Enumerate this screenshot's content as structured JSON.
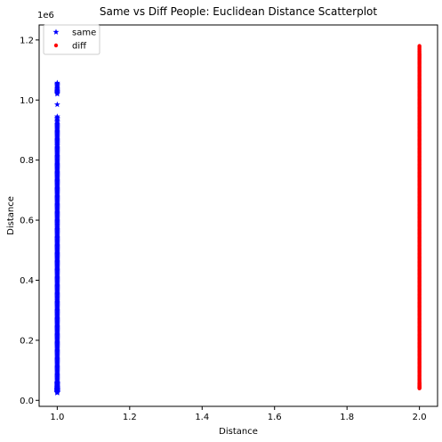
{
  "chart_data": {
    "type": "scatter",
    "title": "Same vs Diff People: Euclidean Distance Scatterplot",
    "xlabel": "Distance",
    "ylabel": "Distance",
    "y_offset_label": "1e6",
    "xlim": [
      0.95,
      2.05
    ],
    "ylim": [
      -0.02,
      1.25
    ],
    "x_ticks": [
      1.0,
      1.2,
      1.4,
      1.6,
      1.8,
      2.0
    ],
    "x_tick_labels": [
      "1.0",
      "1.2",
      "1.4",
      "1.6",
      "1.8",
      "2.0"
    ],
    "y_ticks": [
      0.0,
      0.2,
      0.4,
      0.6,
      0.8,
      1.0,
      1.2
    ],
    "y_tick_labels": [
      "0.0",
      "0.2",
      "0.4",
      "0.6",
      "0.8",
      "1.0",
      "1.2"
    ],
    "grid": false,
    "legend_position": "top-left",
    "series": [
      {
        "name": "same",
        "marker": "star",
        "color": "#0000ff",
        "x": 1.0,
        "y": [
          0.025,
          0.03,
          0.035,
          0.04,
          0.05,
          0.06,
          0.08,
          0.1,
          0.12,
          0.14,
          0.16,
          0.18,
          0.2,
          0.22,
          0.24,
          0.26,
          0.28,
          0.3,
          0.32,
          0.34,
          0.36,
          0.38,
          0.4,
          0.42,
          0.44,
          0.46,
          0.48,
          0.5,
          0.52,
          0.54,
          0.56,
          0.58,
          0.6,
          0.62,
          0.64,
          0.66,
          0.68,
          0.7,
          0.72,
          0.74,
          0.76,
          0.78,
          0.8,
          0.82,
          0.84,
          0.86,
          0.88,
          0.9,
          0.92,
          0.945,
          0.985,
          1.02,
          1.035,
          1.057
        ]
      },
      {
        "name": "diff",
        "marker": "circle",
        "color": "#ff0000",
        "x": 2.0,
        "y": [
          0.04,
          0.045,
          0.05,
          0.06,
          0.08,
          0.1,
          0.12,
          0.14,
          0.16,
          0.18,
          0.2,
          0.22,
          0.24,
          0.26,
          0.28,
          0.3,
          0.32,
          0.34,
          0.36,
          0.38,
          0.4,
          0.42,
          0.44,
          0.46,
          0.48,
          0.5,
          0.52,
          0.54,
          0.56,
          0.58,
          0.6,
          0.62,
          0.64,
          0.66,
          0.68,
          0.7,
          0.72,
          0.74,
          0.76,
          0.78,
          0.8,
          0.82,
          0.84,
          0.86,
          0.88,
          0.9,
          0.92,
          0.94,
          0.96,
          0.98,
          1.0,
          1.02,
          1.04,
          1.06,
          1.08,
          1.1,
          1.12,
          1.14,
          1.155,
          1.18
        ]
      }
    ]
  }
}
